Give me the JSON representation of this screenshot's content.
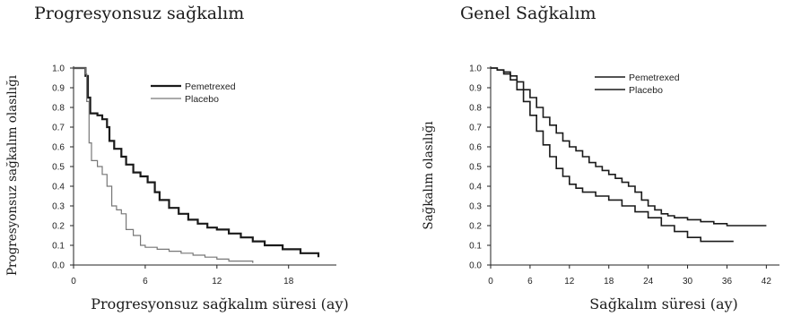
{
  "chart_data": [
    {
      "type": "line",
      "title": "Progresyonsuz sağkalım",
      "xlabel": "Progresyonsuz sağkalım süresi (ay)",
      "ylabel": "Progresyonsuz sağkalım olasılığı",
      "xlim": [
        0,
        22
      ],
      "ylim": [
        0,
        1
      ],
      "xticks": [
        0,
        6,
        12,
        18
      ],
      "xtick_labels": [
        "0",
        "6",
        "12",
        "18"
      ],
      "yticks": [
        0,
        0.1,
        0.2,
        0.3,
        0.4,
        0.5,
        0.6,
        0.7,
        0.8,
        0.9,
        1.0
      ],
      "ytick_labels": [
        "0.0",
        "0.1",
        "0.2",
        "0.3",
        "0.4",
        "0.5",
        "0.6",
        "0.7",
        "0.8",
        "0.9",
        "1.0"
      ],
      "legend_position": "top-right",
      "colors": {
        "Pemetrexed": "#1a1a1a",
        "Placebo": "#777777"
      },
      "series": [
        {
          "name": "Pemetrexed",
          "x": [
            0,
            1.0,
            1.2,
            1.4,
            2.0,
            2.4,
            2.8,
            3.0,
            3.4,
            4.0,
            4.4,
            5.0,
            5.6,
            6.2,
            6.8,
            7.2,
            8.0,
            8.8,
            9.6,
            10.4,
            11.2,
            12.0,
            13.0,
            14.0,
            15.0,
            16.0,
            17.5,
            19.0,
            20.5
          ],
          "y": [
            1.0,
            0.96,
            0.85,
            0.77,
            0.76,
            0.74,
            0.7,
            0.63,
            0.59,
            0.55,
            0.51,
            0.47,
            0.45,
            0.42,
            0.37,
            0.33,
            0.29,
            0.26,
            0.23,
            0.21,
            0.19,
            0.18,
            0.16,
            0.14,
            0.12,
            0.1,
            0.08,
            0.06,
            0.04
          ]
        },
        {
          "name": "Placebo",
          "x": [
            0,
            0.6,
            1.0,
            1.1,
            1.3,
            1.5,
            2.0,
            2.4,
            2.8,
            3.2,
            3.6,
            4.0,
            4.4,
            5.0,
            5.6,
            6.0,
            7.0,
            8.0,
            9.0,
            10.0,
            11.0,
            12.0,
            13.0,
            15.0
          ],
          "y": [
            1.0,
            1.0,
            0.97,
            0.83,
            0.62,
            0.53,
            0.5,
            0.46,
            0.4,
            0.3,
            0.28,
            0.26,
            0.18,
            0.15,
            0.1,
            0.09,
            0.08,
            0.07,
            0.06,
            0.05,
            0.04,
            0.03,
            0.02,
            0.01
          ]
        }
      ]
    },
    {
      "type": "line",
      "title": "Genel Sağkalım",
      "xlabel": "Sağkalım süresi (ay)",
      "ylabel": "Sağkalım olasılığı",
      "xlim": [
        0,
        44
      ],
      "ylim": [
        0,
        1
      ],
      "xticks": [
        0,
        6,
        12,
        18,
        24,
        30,
        36,
        42
      ],
      "xtick_labels": [
        "0",
        "6",
        "12",
        "18",
        "24",
        "30",
        "36",
        "42"
      ],
      "yticks": [
        0,
        0.1,
        0.2,
        0.3,
        0.4,
        0.5,
        0.6,
        0.7,
        0.8,
        0.9,
        1.0
      ],
      "ytick_labels": [
        "0.0",
        "0.1",
        "0.2",
        "0.3",
        "0.4",
        "0.5",
        "0.6",
        "0.7",
        "0.8",
        "0.9",
        "1.0"
      ],
      "legend_position": "top-right",
      "colors": {
        "Pemetrexed": "#1a1a1a",
        "Placebo": "#1a1a1a"
      },
      "series": [
        {
          "name": "Pemetrexed",
          "x": [
            0,
            1,
            2,
            3,
            4,
            5,
            6,
            7,
            8,
            9,
            10,
            11,
            12,
            13,
            14,
            15,
            16,
            17,
            18,
            19,
            20,
            21,
            22,
            23,
            24,
            25,
            26,
            27,
            28,
            30,
            32,
            34,
            36,
            38,
            40,
            42
          ],
          "y": [
            1.0,
            0.99,
            0.98,
            0.96,
            0.93,
            0.89,
            0.85,
            0.8,
            0.75,
            0.71,
            0.67,
            0.63,
            0.6,
            0.58,
            0.55,
            0.52,
            0.5,
            0.48,
            0.46,
            0.44,
            0.42,
            0.4,
            0.37,
            0.33,
            0.3,
            0.28,
            0.26,
            0.25,
            0.24,
            0.23,
            0.22,
            0.21,
            0.2,
            0.2,
            0.2,
            0.2
          ]
        },
        {
          "name": "Placebo",
          "x": [
            0,
            1,
            2,
            3,
            4,
            5,
            6,
            7,
            8,
            9,
            10,
            11,
            12,
            13,
            14,
            16,
            18,
            20,
            22,
            24,
            26,
            28,
            30,
            32,
            34,
            36,
            37
          ],
          "y": [
            1.0,
            0.99,
            0.97,
            0.94,
            0.89,
            0.83,
            0.76,
            0.68,
            0.61,
            0.55,
            0.49,
            0.45,
            0.41,
            0.39,
            0.37,
            0.35,
            0.33,
            0.3,
            0.27,
            0.24,
            0.2,
            0.17,
            0.14,
            0.12,
            0.12,
            0.12,
            0.12
          ]
        }
      ]
    }
  ]
}
